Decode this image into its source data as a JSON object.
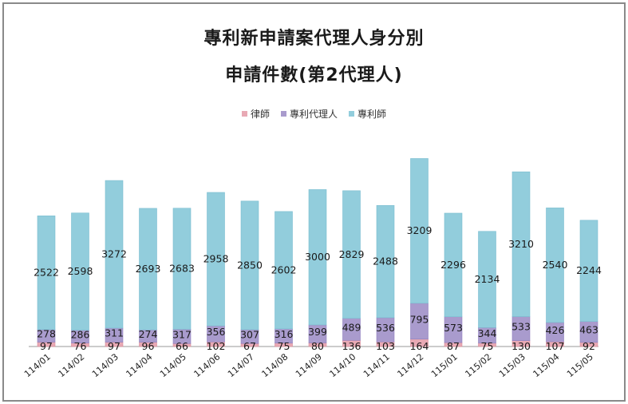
{
  "chart_data": {
    "type": "bar",
    "stacked": true,
    "title": "專利新申請案代理人身分別",
    "subtitle": "申請件數(第2代理人)",
    "xlabel": "",
    "ylabel": "",
    "legend_position": "top-center",
    "grid": false,
    "categories": [
      "114/01",
      "114/02",
      "114/03",
      "114/04",
      "114/05",
      "114/06",
      "114/07",
      "114/08",
      "114/09",
      "114/10",
      "114/11",
      "114/12",
      "115/01",
      "115/02",
      "115/03",
      "115/04",
      "115/05"
    ],
    "series": [
      {
        "name": "律師",
        "color": "#e8a9b4",
        "values": [
          97,
          76,
          97,
          96,
          66,
          102,
          67,
          75,
          80,
          136,
          103,
          164,
          87,
          75,
          130,
          107,
          92
        ]
      },
      {
        "name": "專利代理人",
        "color": "#a99bcd",
        "values": [
          278,
          286,
          311,
          274,
          317,
          356,
          307,
          316,
          399,
          489,
          536,
          795,
          573,
          344,
          533,
          426,
          463
        ]
      },
      {
        "name": "專利師",
        "color": "#92cddc",
        "values": [
          2522,
          2598,
          3272,
          2693,
          2683,
          2958,
          2850,
          2602,
          3000,
          2829,
          2488,
          3209,
          2296,
          2134,
          3210,
          2540,
          2244
        ]
      }
    ]
  }
}
